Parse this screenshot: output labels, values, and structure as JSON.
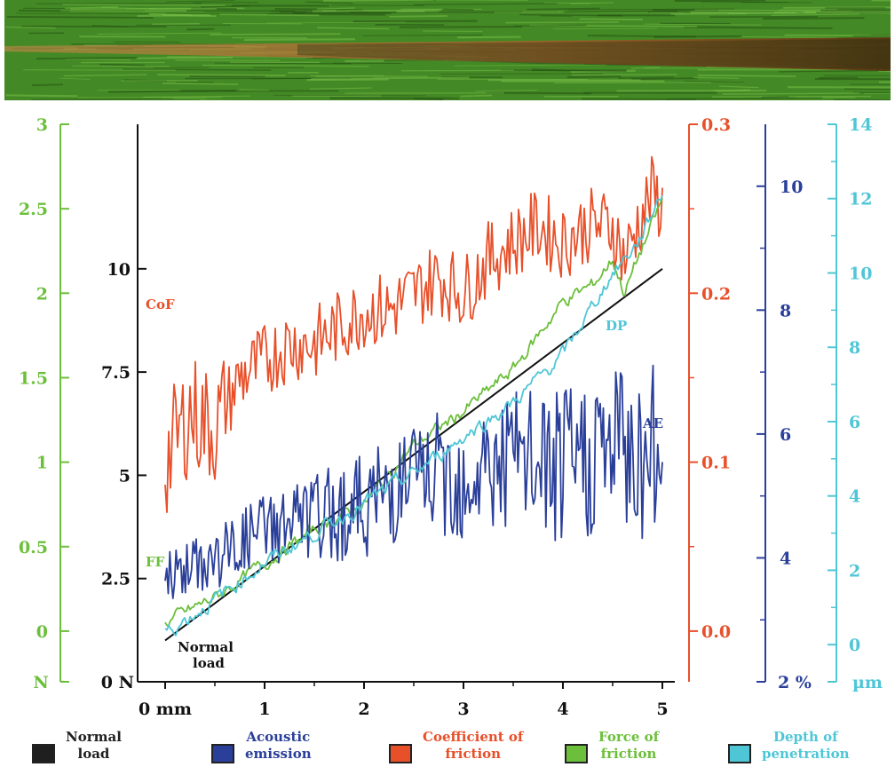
{
  "chart_data": {
    "type": "line",
    "x_axis": {
      "ticks": [
        "0 mm",
        "1",
        "2",
        "3",
        "4",
        "5"
      ],
      "range": [
        0,
        5
      ]
    },
    "axes": {
      "force_of_friction": {
        "unit": "N",
        "color": "#6cbf3b",
        "range": [
          -0.3,
          3
        ],
        "ticks": [
          "0",
          "0.5",
          "1",
          "1.5",
          "2",
          "2.5",
          "3"
        ]
      },
      "normal_load": {
        "unit": "0 N",
        "color": "#111111",
        "range": [
          0,
          13.5
        ],
        "ticks": [
          "2.5",
          "5",
          "7.5",
          "10"
        ]
      },
      "coefficient_of_friction": {
        "color": "#e8502a",
        "range": [
          -0.03,
          0.3
        ],
        "ticks": [
          "0.0",
          "0.1",
          "0.2",
          "0.3"
        ]
      },
      "acoustic_emission": {
        "unit": "2 %",
        "color": "#2a3f9a",
        "range": [
          2,
          11
        ],
        "ticks": [
          "4",
          "6",
          "8",
          "10"
        ]
      },
      "depth_of_penetration": {
        "unit": "µm",
        "color": "#4fc6d6",
        "range": [
          -1,
          14
        ],
        "ticks": [
          "0",
          "2",
          "4",
          "6",
          "8",
          "10",
          "12",
          "14"
        ]
      }
    },
    "series": [
      {
        "name": "Normal load",
        "key": "normal_load",
        "color": "#111111",
        "x": [
          0,
          5
        ],
        "y": [
          1,
          10
        ]
      },
      {
        "name": "Coefficient of friction",
        "key": "coefficient_of_friction",
        "color": "#e8502a",
        "x": [
          0,
          0.25,
          0.5,
          0.75,
          1,
          1.25,
          1.5,
          1.75,
          2,
          2.25,
          2.5,
          2.75,
          3,
          3.25,
          3.5,
          3.75,
          4,
          4.25,
          4.5,
          4.62,
          4.75,
          4.9,
          5
        ],
        "y": [
          0.1,
          0.13,
          0.12,
          0.15,
          0.16,
          0.17,
          0.17,
          0.18,
          0.19,
          0.19,
          0.2,
          0.21,
          0.2,
          0.22,
          0.23,
          0.24,
          0.23,
          0.24,
          0.24,
          0.22,
          0.24,
          0.26,
          0.25
        ]
      },
      {
        "name": "Force of friction",
        "key": "force_of_friction",
        "color": "#6cbf3b",
        "x": [
          0,
          0.5,
          1,
          1.5,
          2,
          2.5,
          3,
          3.5,
          4,
          4.3,
          4.5,
          4.62,
          4.75,
          5
        ],
        "y": [
          0.05,
          0.2,
          0.4,
          0.6,
          0.75,
          1.1,
          1.3,
          1.55,
          1.95,
          2.05,
          2.2,
          2.0,
          2.2,
          2.55
        ]
      },
      {
        "name": "Acoustic emission",
        "key": "acoustic_emission",
        "color": "#2a3f9a",
        "x": [
          0,
          0.5,
          1,
          1.5,
          2,
          2.5,
          3,
          3.5,
          4,
          4.5,
          5
        ],
        "y": [
          3.6,
          3.8,
          4.3,
          4.4,
          4.6,
          5.0,
          5.0,
          5.2,
          5.0,
          5.4,
          5.1
        ]
      },
      {
        "name": "Depth of penetration",
        "key": "depth_of_penetration",
        "color": "#4fc6d6",
        "x": [
          0,
          0.5,
          1,
          1.5,
          2,
          2.5,
          3,
          3.5,
          4,
          4.5,
          4.75,
          5
        ],
        "y": [
          0.3,
          1.2,
          2.2,
          3.0,
          3.8,
          4.6,
          5.6,
          6.5,
          7.8,
          10.0,
          10.8,
          12.2
        ]
      }
    ],
    "annotations": {
      "cof": "CoF",
      "ff": "FF",
      "dp": "DP",
      "ae": "AE",
      "normal_load": [
        "Normal",
        "load"
      ]
    },
    "legend": [
      {
        "label": [
          "Normal",
          "load"
        ],
        "color": "#1f1f1f",
        "text_color": "#1f1f1f"
      },
      {
        "label": [
          "Acoustic",
          "emission"
        ],
        "color": "#2a3f9a",
        "text_color": "#2a3f9a"
      },
      {
        "label": [
          "Coefficient of",
          "friction"
        ],
        "color": "#e8502a",
        "text_color": "#e8502a"
      },
      {
        "label": [
          "Force of",
          "friction"
        ],
        "color": "#6cbf3b",
        "text_color": "#6cbf3b"
      },
      {
        "label": [
          "Depth of",
          "penetration"
        ],
        "color": "#4fc6d6",
        "text_color": "#4fc6d6"
      }
    ]
  }
}
